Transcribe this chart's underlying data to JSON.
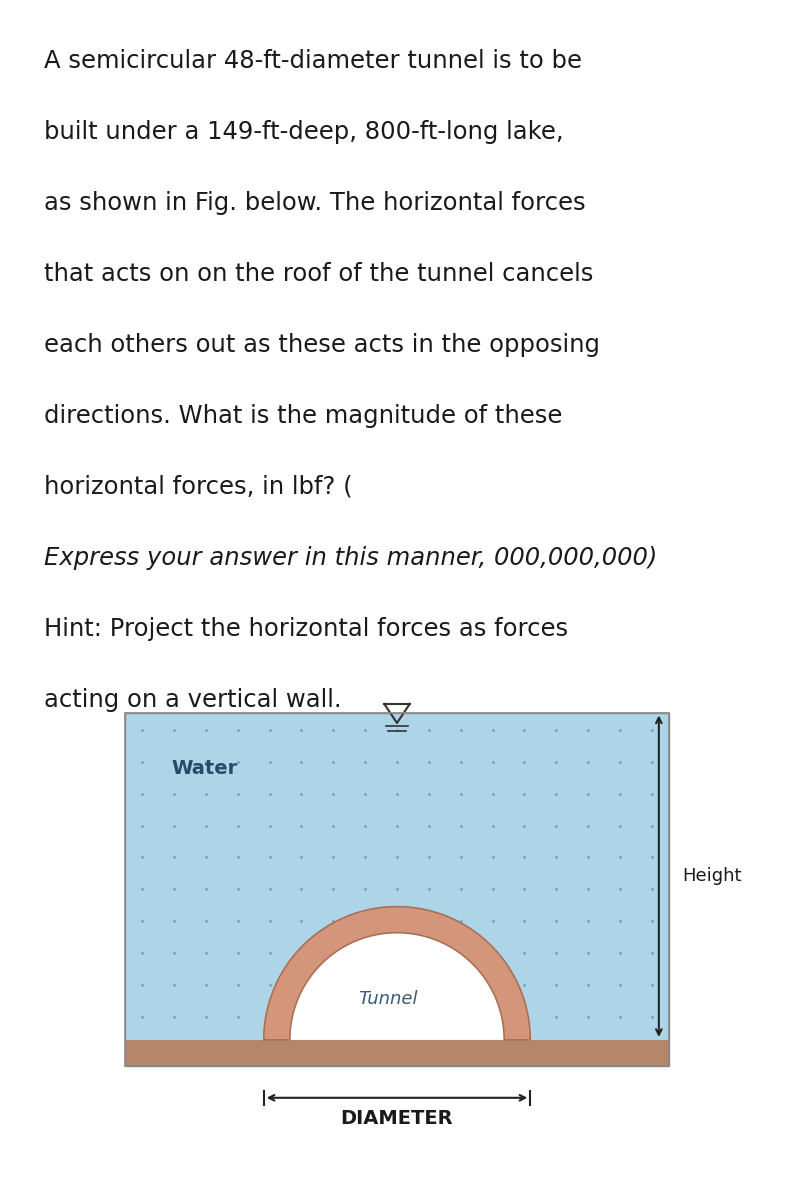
{
  "background_color": "#ffffff",
  "text_block": [
    {
      "text": "A semicircular 48-ft-diameter tunnel is to be",
      "style": "normal"
    },
    {
      "text": "built under a 149-ft-deep, 800-ft-long lake,",
      "style": "normal"
    },
    {
      "text": "as shown in Fig. below. The horizontal forces",
      "style": "normal"
    },
    {
      "text": "that acts on on the roof of the tunnel cancels",
      "style": "normal"
    },
    {
      "text": "each others out as these acts in the opposing",
      "style": "normal"
    },
    {
      "text": "directions. What is the magnitude of these",
      "style": "normal"
    },
    {
      "text": "horizontal forces, in lbf? (",
      "style": "normal_inline"
    },
    {
      "text": "Express your answer in this manner, 000,000,000",
      "style": "italic_inline"
    },
    {
      "text": ")",
      "style": "normal_inline"
    },
    {
      "text": "Hint: Project the horizontal forces as forces",
      "style": "normal"
    },
    {
      "text": "acting on a vertical wall.",
      "style": "normal"
    }
  ],
  "diagram": {
    "water_color": "#aed4e8",
    "tunnel_wall_outer_color": "#d4967a",
    "tunnel_wall_inner_color": "#f5e6dc",
    "tunnel_interior_color": "#ffffff",
    "ground_color": "#b5866a",
    "dot_color": "#6699bb",
    "border_color": "#888888",
    "text_water": "Water",
    "text_tunnel": "Tunnel",
    "text_height": "Height",
    "text_diameter": "DIAMETER",
    "water_symbol_color": "#333333",
    "height_arrow_color": "#222222",
    "diameter_arrow_color": "#222222"
  }
}
